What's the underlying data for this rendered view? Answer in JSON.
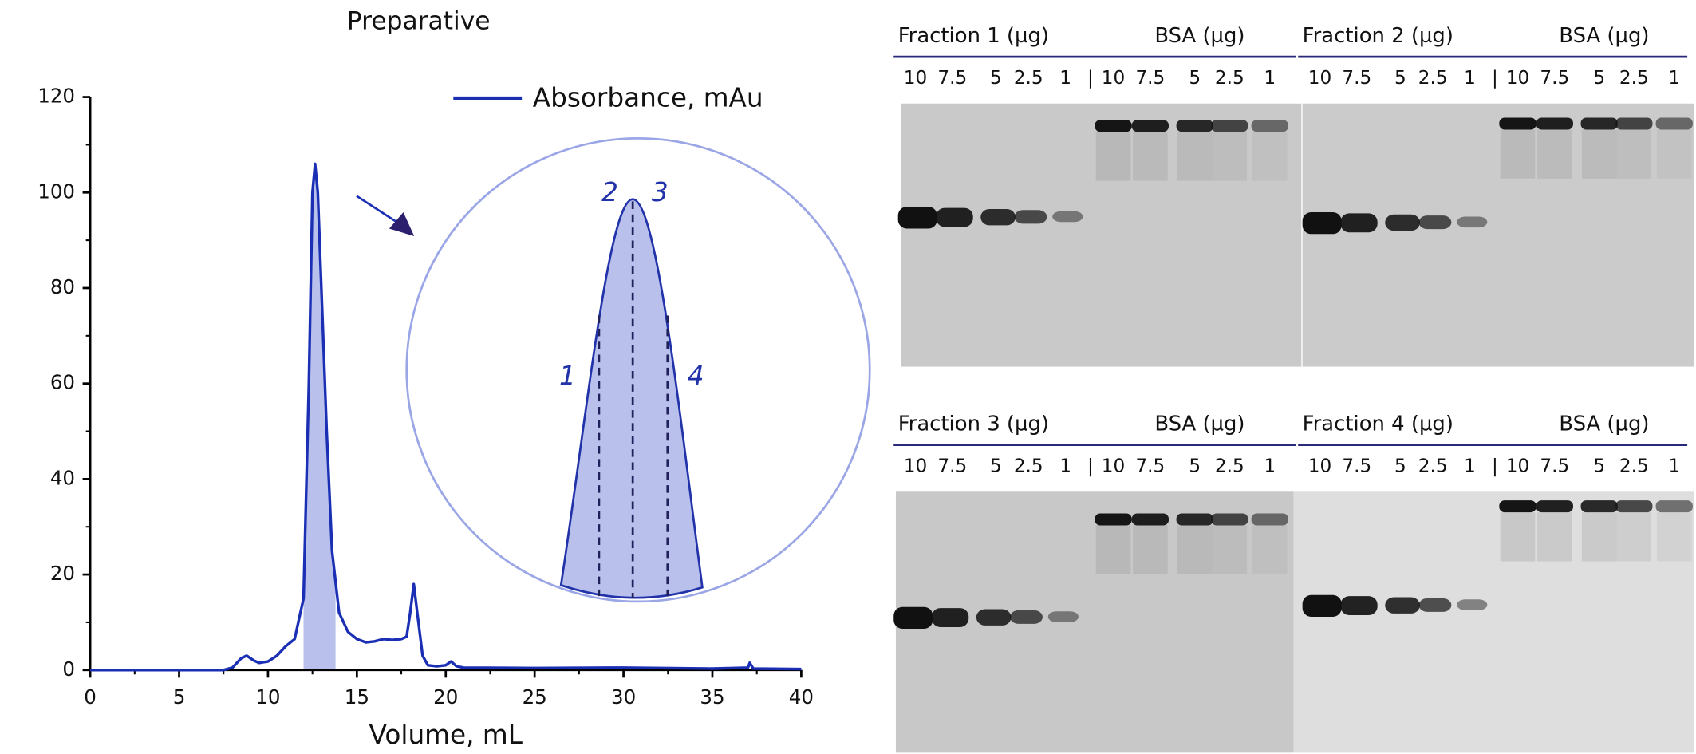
{
  "chart_data": {
    "type": "line",
    "title": "Preparative",
    "x_label": "Volume, mL",
    "x": [
      0,
      7.5,
      8,
      8.5,
      8.8,
      9.2,
      9.5,
      10,
      10.5,
      11,
      11.5,
      12,
      12.3,
      12.5,
      12.65,
      12.8,
      13,
      13.3,
      13.6,
      14,
      14.5,
      15,
      15.5,
      16,
      16.5,
      17,
      17.5,
      17.8,
      18,
      18.2,
      18.4,
      18.7,
      19,
      19.5,
      20,
      20.3,
      20.6,
      21,
      25,
      30,
      35,
      37,
      37.1,
      37.3,
      40
    ],
    "series": [
      {
        "name": "Absorbance, mAu",
        "color": "#1a2fb4",
        "values": [
          0,
          0,
          0.5,
          2.5,
          3,
          2,
          1.5,
          1.8,
          3,
          5,
          6.5,
          15,
          60,
          100,
          106,
          100,
          80,
          50,
          25,
          12,
          8,
          6.5,
          5.8,
          6,
          6.5,
          6.3,
          6.5,
          7,
          12,
          18,
          12,
          3,
          1,
          0.8,
          1,
          1.8,
          0.8,
          0.5,
          0.4,
          0.5,
          0.3,
          0.5,
          1.5,
          0.3,
          0.2
        ]
      }
    ],
    "highlight_range": [
      12,
      13.8
    ],
    "highlight_color": "#b9c0ec",
    "xlim": [
      0,
      40
    ],
    "ylim": [
      0,
      120
    ],
    "xticks": [
      0,
      5,
      10,
      15,
      20,
      25,
      30,
      35,
      40
    ],
    "yticks": [
      0,
      20,
      40,
      60,
      80,
      100,
      120
    ],
    "inset": {
      "labels": [
        "1",
        "2",
        "3",
        "4"
      ]
    }
  },
  "gels": [
    {
      "title": "Fraction 1 (µg)",
      "bsa_title": "BSA (µg)",
      "lanes": [
        "10",
        "7.5",
        "5",
        "2.5",
        "1"
      ],
      "separator": "|",
      "bsa_lanes": [
        "10",
        "7.5",
        "5",
        "2.5",
        "1"
      ]
    },
    {
      "title": "Fraction 2 (µg)",
      "bsa_title": "BSA (µg)",
      "lanes": [
        "10",
        "7.5",
        "5",
        "2.5",
        "1"
      ],
      "separator": "|",
      "bsa_lanes": [
        "10",
        "7.5",
        "5",
        "2.5",
        "1"
      ]
    },
    {
      "title": "Fraction 3 (µg)",
      "bsa_title": "BSA (µg)",
      "lanes": [
        "10",
        "7.5",
        "5",
        "2.5",
        "1"
      ],
      "separator": "|",
      "bsa_lanes": [
        "10",
        "7.5",
        "5",
        "2.5",
        "1"
      ]
    },
    {
      "title": "Fraction 4 (µg)",
      "bsa_title": "BSA (µg)",
      "lanes": [
        "10",
        "7.5",
        "5",
        "2.5",
        "1"
      ],
      "separator": "|",
      "bsa_lanes": [
        "10",
        "7.5",
        "5",
        "2.5",
        "1"
      ]
    }
  ]
}
